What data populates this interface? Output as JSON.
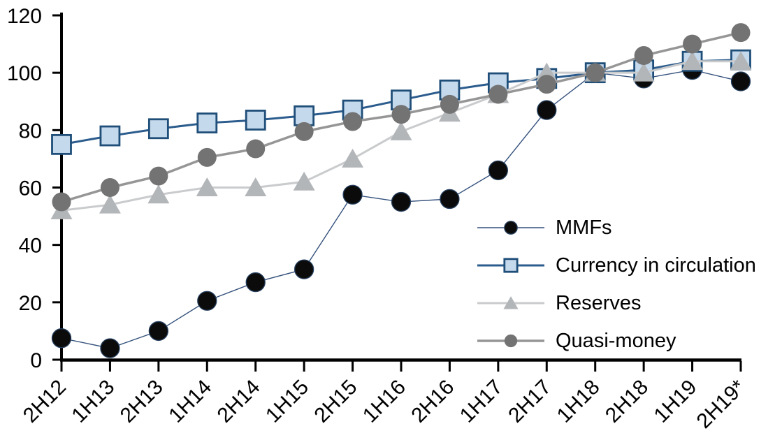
{
  "chart_data": {
    "type": "line",
    "title": "",
    "subtitle": "",
    "xlabel": "",
    "ylabel": "",
    "ylim": [
      0,
      120
    ],
    "yticks": [
      0,
      20,
      40,
      60,
      80,
      100,
      120
    ],
    "grid": false,
    "legend_position": "center-right",
    "axis_color": "#000000",
    "categories": [
      "2H12",
      "1H13",
      "2H13",
      "1H14",
      "2H14",
      "1H15",
      "2H15",
      "1H16",
      "2H16",
      "1H17",
      "2H17",
      "1H18",
      "2H18",
      "1H19",
      "2H19*"
    ],
    "series": [
      {
        "name": "MMFs",
        "marker": "circle",
        "line_color": "#34517c",
        "line_width": 1.4,
        "marker_fill": "#0b0b0b",
        "marker_stroke": "#26405f",
        "values": [
          7.5,
          4,
          10,
          20.5,
          27,
          31.5,
          57.5,
          55,
          56,
          66,
          87,
          100,
          98,
          101,
          97
        ]
      },
      {
        "name": "Currency in circulation",
        "marker": "square",
        "line_color": "#2b5c8d",
        "line_width": 3,
        "marker_fill": "#c5d9ed",
        "marker_stroke": "#1f4e79",
        "values": [
          75,
          78,
          80.5,
          82.5,
          83.5,
          85,
          87,
          90.5,
          94,
          96.5,
          98,
          100,
          101,
          104,
          104.5
        ]
      },
      {
        "name": "Reserves",
        "marker": "triangle",
        "line_color": "#c9cbcd",
        "line_width": 3,
        "marker_fill": "#b3b6b9",
        "marker_stroke": "none",
        "values": [
          52,
          54,
          57.5,
          60,
          60,
          62,
          70,
          79.5,
          86,
          92.5,
          100,
          100,
          100,
          104,
          104
        ]
      },
      {
        "name": "Quasi-money",
        "marker": "circle",
        "line_color": "#969696",
        "line_width": 3.5,
        "marker_fill": "#737373",
        "marker_stroke": "none",
        "values": [
          55,
          60,
          64,
          70.5,
          73.5,
          79.5,
          83,
          85.5,
          89,
          92.5,
          96,
          100,
          106,
          110,
          114
        ]
      }
    ]
  }
}
